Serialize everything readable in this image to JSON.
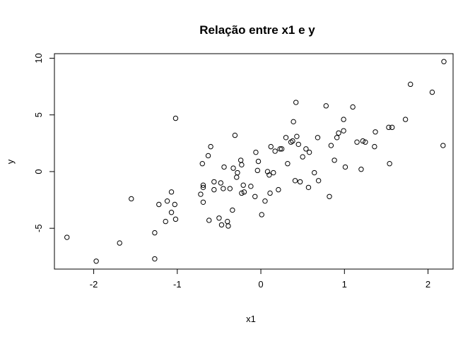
{
  "chart_data": {
    "type": "scatter",
    "title": "Relação entre x1 e y",
    "xlabel": "x1",
    "ylabel": "y",
    "xlim": [
      -2.47,
      2.3
    ],
    "ylim": [
      -8.6,
      10.4
    ],
    "xticks": [
      -2,
      -1,
      0,
      1,
      2
    ],
    "yticks": [
      -5,
      0,
      5,
      10
    ],
    "xtick_labels": [
      "-2",
      "-1",
      "0",
      "1",
      "2"
    ],
    "ytick_labels": [
      "-5",
      "0",
      "5",
      "10"
    ],
    "grid": false,
    "legend": "none",
    "marker": "open-circle",
    "points": [
      {
        "x": -2.32,
        "y": -5.8
      },
      {
        "x": -1.97,
        "y": -7.9
      },
      {
        "x": -1.69,
        "y": -6.3
      },
      {
        "x": -1.55,
        "y": -2.4
      },
      {
        "x": -1.27,
        "y": -7.7
      },
      {
        "x": -1.27,
        "y": -5.4
      },
      {
        "x": -1.22,
        "y": -2.9
      },
      {
        "x": -1.14,
        "y": -4.4
      },
      {
        "x": -1.12,
        "y": -2.6
      },
      {
        "x": -1.07,
        "y": -1.8
      },
      {
        "x": -1.07,
        "y": -3.6
      },
      {
        "x": -1.03,
        "y": -2.9
      },
      {
        "x": -1.02,
        "y": -4.2
      },
      {
        "x": -1.02,
        "y": 4.7
      },
      {
        "x": -0.72,
        "y": -2.0
      },
      {
        "x": -0.7,
        "y": 0.7
      },
      {
        "x": -0.69,
        "y": -1.2
      },
      {
        "x": -0.69,
        "y": -1.4
      },
      {
        "x": -0.69,
        "y": -2.7
      },
      {
        "x": -0.63,
        "y": 1.4
      },
      {
        "x": -0.62,
        "y": -4.3
      },
      {
        "x": -0.6,
        "y": 2.2
      },
      {
        "x": -0.56,
        "y": -0.9
      },
      {
        "x": -0.56,
        "y": -1.6
      },
      {
        "x": -0.5,
        "y": -4.1
      },
      {
        "x": -0.48,
        "y": -1.0
      },
      {
        "x": -0.47,
        "y": -4.7
      },
      {
        "x": -0.45,
        "y": -1.5
      },
      {
        "x": -0.44,
        "y": 0.4
      },
      {
        "x": -0.4,
        "y": -4.4
      },
      {
        "x": -0.39,
        "y": -4.8
      },
      {
        "x": -0.37,
        "y": -1.5
      },
      {
        "x": -0.34,
        "y": -3.4
      },
      {
        "x": -0.33,
        "y": 0.3
      },
      {
        "x": -0.31,
        "y": 3.2
      },
      {
        "x": -0.29,
        "y": -0.5
      },
      {
        "x": -0.28,
        "y": -0.1
      },
      {
        "x": -0.24,
        "y": 1.0
      },
      {
        "x": -0.23,
        "y": 0.6
      },
      {
        "x": -0.23,
        "y": -1.9
      },
      {
        "x": -0.21,
        "y": -1.2
      },
      {
        "x": -0.2,
        "y": -1.8
      },
      {
        "x": -0.12,
        "y": -1.3
      },
      {
        "x": -0.07,
        "y": -2.2
      },
      {
        "x": -0.06,
        "y": 1.7
      },
      {
        "x": -0.04,
        "y": 0.1
      },
      {
        "x": -0.03,
        "y": 0.9
      },
      {
        "x": 0.01,
        "y": -3.8
      },
      {
        "x": 0.05,
        "y": -2.6
      },
      {
        "x": 0.08,
        "y": 0.0
      },
      {
        "x": 0.1,
        "y": -0.3
      },
      {
        "x": 0.11,
        "y": -1.9
      },
      {
        "x": 0.12,
        "y": 2.2
      },
      {
        "x": 0.15,
        "y": -0.1
      },
      {
        "x": 0.17,
        "y": 1.8
      },
      {
        "x": 0.21,
        "y": -1.6
      },
      {
        "x": 0.23,
        "y": 2.0
      },
      {
        "x": 0.25,
        "y": 2.0
      },
      {
        "x": 0.3,
        "y": 3.0
      },
      {
        "x": 0.32,
        "y": 0.7
      },
      {
        "x": 0.36,
        "y": 2.6
      },
      {
        "x": 0.38,
        "y": 2.7
      },
      {
        "x": 0.39,
        "y": 4.4
      },
      {
        "x": 0.41,
        "y": -0.8
      },
      {
        "x": 0.42,
        "y": 6.1
      },
      {
        "x": 0.43,
        "y": 3.1
      },
      {
        "x": 0.45,
        "y": 2.4
      },
      {
        "x": 0.47,
        "y": -0.9
      },
      {
        "x": 0.5,
        "y": 1.3
      },
      {
        "x": 0.54,
        "y": 2.0
      },
      {
        "x": 0.57,
        "y": -1.4
      },
      {
        "x": 0.58,
        "y": 1.7
      },
      {
        "x": 0.64,
        "y": -0.1
      },
      {
        "x": 0.68,
        "y": 3.0
      },
      {
        "x": 0.69,
        "y": -0.8
      },
      {
        "x": 0.78,
        "y": 5.8
      },
      {
        "x": 0.82,
        "y": -2.2
      },
      {
        "x": 0.84,
        "y": 2.3
      },
      {
        "x": 0.88,
        "y": 1.0
      },
      {
        "x": 0.91,
        "y": 3.0
      },
      {
        "x": 0.93,
        "y": 3.4
      },
      {
        "x": 0.99,
        "y": 4.6
      },
      {
        "x": 0.99,
        "y": 3.6
      },
      {
        "x": 1.01,
        "y": 0.4
      },
      {
        "x": 1.1,
        "y": 5.7
      },
      {
        "x": 1.15,
        "y": 2.6
      },
      {
        "x": 1.2,
        "y": 0.2
      },
      {
        "x": 1.22,
        "y": 2.7
      },
      {
        "x": 1.25,
        "y": 2.6
      },
      {
        "x": 1.36,
        "y": 2.2
      },
      {
        "x": 1.37,
        "y": 3.5
      },
      {
        "x": 1.53,
        "y": 3.9
      },
      {
        "x": 1.54,
        "y": 0.7
      },
      {
        "x": 1.57,
        "y": 3.9
      },
      {
        "x": 1.73,
        "y": 4.6
      },
      {
        "x": 1.79,
        "y": 7.7
      },
      {
        "x": 2.05,
        "y": 7.0
      },
      {
        "x": 2.18,
        "y": 2.3
      },
      {
        "x": 2.19,
        "y": 9.7
      }
    ]
  }
}
